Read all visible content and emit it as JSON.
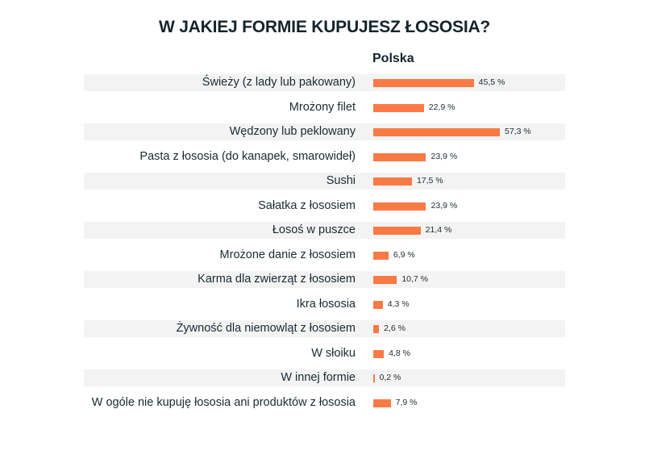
{
  "title": "W JAKIEJ FORMIE KUPUJESZ ŁOSOSIA?",
  "series_label": "Polska",
  "colors": {
    "bar": "#f97a45",
    "stripe": "#f3f3f3",
    "text": "#14242c"
  },
  "chart_data": {
    "type": "bar",
    "orientation": "horizontal",
    "title": "W JAKIEJ FORMIE KUPUJESZ ŁOSOSIA?",
    "xlabel": "",
    "ylabel": "",
    "grid": false,
    "legend": "none",
    "series": [
      {
        "name": "Polska",
        "values": [
          45.5,
          22.9,
          57.3,
          23.9,
          17.5,
          23.9,
          21.4,
          6.9,
          10.7,
          4.3,
          2.6,
          4.8,
          0.2,
          7.9
        ]
      }
    ],
    "categories": [
      "Świeży (z lady lub pakowany)",
      "Mrożony filet",
      "Wędzony lub peklowany",
      "Pasta z łososia (do kanapek, smarowideł)",
      "Sushi",
      "Sałatka z łososiem",
      "Łosoś w puszce",
      "Mrożone danie z łososiem",
      "Karma dla zwierząt z łososiem",
      "Ikra  łososia",
      "Żywność dla niemowląt z łososiem",
      "W słoiku",
      "W innej formie",
      "W ogóle nie kupuję łososia ani produktów z łososia"
    ],
    "value_labels": [
      "45,5 %",
      "22,9 %",
      "57,3 %",
      "23,9 %",
      "17,5 %",
      "23,9 %",
      "21,4 %",
      "6,9 %",
      "10,7 %",
      "4,3 %",
      "2,6 %",
      "4,8 %",
      "0,2 %",
      "7,9 %"
    ],
    "unit": "%"
  },
  "rows": [
    {
      "label": "Świeży (z lady lub pakowany)",
      "value": 45.5,
      "value_label": "45,5 %"
    },
    {
      "label": "Mrożony filet",
      "value": 22.9,
      "value_label": "22,9 %"
    },
    {
      "label": "Wędzony lub peklowany",
      "value": 57.3,
      "value_label": "57,3 %"
    },
    {
      "label": "Pasta z łososia (do kanapek, smarowideł)",
      "value": 23.9,
      "value_label": "23,9 %"
    },
    {
      "label": "Sushi",
      "value": 17.5,
      "value_label": "17,5 %"
    },
    {
      "label": "Sałatka z łososiem",
      "value": 23.9,
      "value_label": "23,9 %"
    },
    {
      "label": "Łosoś w puszce",
      "value": 21.4,
      "value_label": "21,4 %"
    },
    {
      "label": "Mrożone danie z łososiem",
      "value": 6.9,
      "value_label": "6,9 %"
    },
    {
      "label": "Karma dla zwierząt z łososiem",
      "value": 10.7,
      "value_label": "10,7 %"
    },
    {
      "label": "Ikra  łososia",
      "value": 4.3,
      "value_label": "4,3 %"
    },
    {
      "label": "Żywność dla niemowląt z łososiem",
      "value": 2.6,
      "value_label": "2,6 %"
    },
    {
      "label": "W słoiku",
      "value": 4.8,
      "value_label": "4,8 %"
    },
    {
      "label": "W innej formie",
      "value": 0.2,
      "value_label": "0,2 %"
    },
    {
      "label": "W ogóle nie kupuję łososia ani produktów z łososia",
      "value": 7.9,
      "value_label": "7,9 %"
    }
  ]
}
